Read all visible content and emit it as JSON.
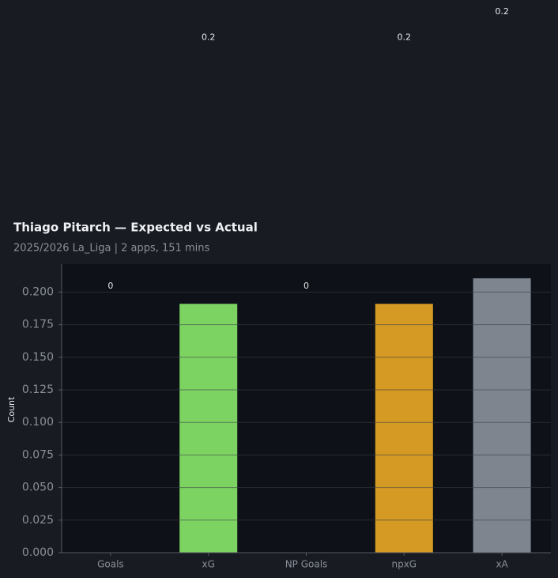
{
  "chart_data": {
    "type": "bar",
    "title": "Thiago Pitarch — Expected vs Actual",
    "subtitle": "2025/2026 La_Liga | 2 apps, 151 mins",
    "y_label": "Count",
    "categories": [
      "Goals",
      "xG",
      "NP Goals",
      "npxG",
      "xA"
    ],
    "values": [
      0,
      0.191,
      0,
      0.191,
      0.2106
    ],
    "value_labels": [
      "0",
      "0.2",
      "0",
      "0.2",
      "0.2"
    ],
    "colors": [
      "#7dd362",
      "#7dd362",
      "#d59a23",
      "#d59a23",
      "#7e858f"
    ],
    "ylim": [
      0,
      0.2215
    ],
    "yticks": [
      {
        "value": 0,
        "label": "0.000"
      },
      {
        "value": 0.025,
        "label": "0.025"
      },
      {
        "value": 0.05,
        "label": "0.050"
      },
      {
        "value": 0.075,
        "label": "0.075"
      },
      {
        "value": 0.1,
        "label": "0.100"
      },
      {
        "value": 0.125,
        "label": "0.125"
      },
      {
        "value": 0.15,
        "label": "0.150"
      },
      {
        "value": 0.175,
        "label": "0.175"
      },
      {
        "value": 0.2,
        "label": "0.200"
      }
    ],
    "grid": true
  }
}
